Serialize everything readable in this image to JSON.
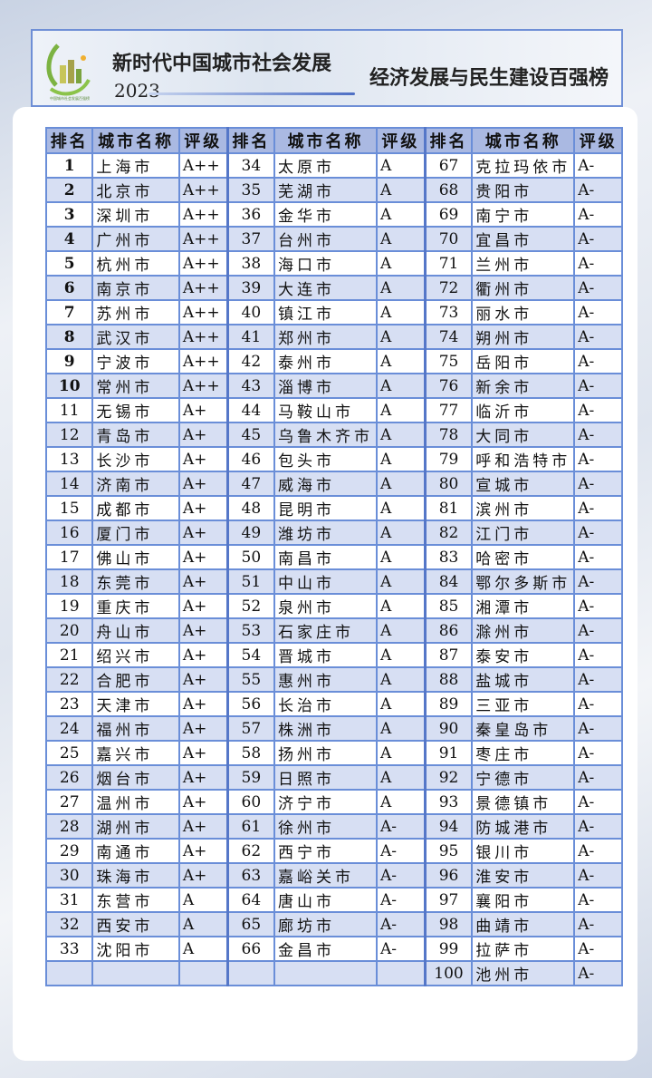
{
  "header": {
    "title": "新时代中国城市社会发展",
    "year": "2023",
    "subtitle": "经济发展与民生建设百强榜",
    "logo_text": "中国城市社会发展百强榜"
  },
  "table": {
    "headers": [
      "排名",
      "城市名称",
      "评级"
    ],
    "rows": [
      [
        [
          "1",
          "上海市",
          "A++"
        ],
        [
          "34",
          "太原市",
          "A"
        ],
        [
          "67",
          "克拉玛依市",
          "A-"
        ]
      ],
      [
        [
          "2",
          "北京市",
          "A++"
        ],
        [
          "35",
          "芜湖市",
          "A"
        ],
        [
          "68",
          "贵阳市",
          "A-"
        ]
      ],
      [
        [
          "3",
          "深圳市",
          "A++"
        ],
        [
          "36",
          "金华市",
          "A"
        ],
        [
          "69",
          "南宁市",
          "A-"
        ]
      ],
      [
        [
          "4",
          "广州市",
          "A++"
        ],
        [
          "37",
          "台州市",
          "A"
        ],
        [
          "70",
          "宜昌市",
          "A-"
        ]
      ],
      [
        [
          "5",
          "杭州市",
          "A++"
        ],
        [
          "38",
          "海口市",
          "A"
        ],
        [
          "71",
          "兰州市",
          "A-"
        ]
      ],
      [
        [
          "6",
          "南京市",
          "A++"
        ],
        [
          "39",
          "大连市",
          "A"
        ],
        [
          "72",
          "衢州市",
          "A-"
        ]
      ],
      [
        [
          "7",
          "苏州市",
          "A++"
        ],
        [
          "40",
          "镇江市",
          "A"
        ],
        [
          "73",
          "丽水市",
          "A-"
        ]
      ],
      [
        [
          "8",
          "武汉市",
          "A++"
        ],
        [
          "41",
          "郑州市",
          "A"
        ],
        [
          "74",
          "朔州市",
          "A-"
        ]
      ],
      [
        [
          "9",
          "宁波市",
          "A++"
        ],
        [
          "42",
          "泰州市",
          "A"
        ],
        [
          "75",
          "岳阳市",
          "A-"
        ]
      ],
      [
        [
          "10",
          "常州市",
          "A++"
        ],
        [
          "43",
          "淄博市",
          "A"
        ],
        [
          "76",
          "新余市",
          "A-"
        ]
      ],
      [
        [
          "11",
          "无锡市",
          "A+"
        ],
        [
          "44",
          "马鞍山市",
          "A"
        ],
        [
          "77",
          "临沂市",
          "A-"
        ]
      ],
      [
        [
          "12",
          "青岛市",
          "A+"
        ],
        [
          "45",
          "乌鲁木齐市",
          "A"
        ],
        [
          "78",
          "大同市",
          "A-"
        ]
      ],
      [
        [
          "13",
          "长沙市",
          "A+"
        ],
        [
          "46",
          "包头市",
          "A"
        ],
        [
          "79",
          "呼和浩特市",
          "A-"
        ]
      ],
      [
        [
          "14",
          "济南市",
          "A+"
        ],
        [
          "47",
          "威海市",
          "A"
        ],
        [
          "80",
          "宣城市",
          "A-"
        ]
      ],
      [
        [
          "15",
          "成都市",
          "A+"
        ],
        [
          "48",
          "昆明市",
          "A"
        ],
        [
          "81",
          "滨州市",
          "A-"
        ]
      ],
      [
        [
          "16",
          "厦门市",
          "A+"
        ],
        [
          "49",
          "潍坊市",
          "A"
        ],
        [
          "82",
          "江门市",
          "A-"
        ]
      ],
      [
        [
          "17",
          "佛山市",
          "A+"
        ],
        [
          "50",
          "南昌市",
          "A"
        ],
        [
          "83",
          "哈密市",
          "A-"
        ]
      ],
      [
        [
          "18",
          "东莞市",
          "A+"
        ],
        [
          "51",
          "中山市",
          "A"
        ],
        [
          "84",
          "鄂尔多斯市",
          "A-"
        ]
      ],
      [
        [
          "19",
          "重庆市",
          "A+"
        ],
        [
          "52",
          "泉州市",
          "A"
        ],
        [
          "85",
          "湘潭市",
          "A-"
        ]
      ],
      [
        [
          "20",
          "舟山市",
          "A+"
        ],
        [
          "53",
          "石家庄市",
          "A"
        ],
        [
          "86",
          "滁州市",
          "A-"
        ]
      ],
      [
        [
          "21",
          "绍兴市",
          "A+"
        ],
        [
          "54",
          "晋城市",
          "A"
        ],
        [
          "87",
          "泰安市",
          "A-"
        ]
      ],
      [
        [
          "22",
          "合肥市",
          "A+"
        ],
        [
          "55",
          "惠州市",
          "A"
        ],
        [
          "88",
          "盐城市",
          "A-"
        ]
      ],
      [
        [
          "23",
          "天津市",
          "A+"
        ],
        [
          "56",
          "长治市",
          "A"
        ],
        [
          "89",
          "三亚市",
          "A-"
        ]
      ],
      [
        [
          "24",
          "福州市",
          "A+"
        ],
        [
          "57",
          "株洲市",
          "A"
        ],
        [
          "90",
          "秦皇岛市",
          "A-"
        ]
      ],
      [
        [
          "25",
          "嘉兴市",
          "A+"
        ],
        [
          "58",
          "扬州市",
          "A"
        ],
        [
          "91",
          "枣庄市",
          "A-"
        ]
      ],
      [
        [
          "26",
          "烟台市",
          "A+"
        ],
        [
          "59",
          "日照市",
          "A"
        ],
        [
          "92",
          "宁德市",
          "A-"
        ]
      ],
      [
        [
          "27",
          "温州市",
          "A+"
        ],
        [
          "60",
          "济宁市",
          "A"
        ],
        [
          "93",
          "景德镇市",
          "A-"
        ]
      ],
      [
        [
          "28",
          "湖州市",
          "A+"
        ],
        [
          "61",
          "徐州市",
          "A-"
        ],
        [
          "94",
          "防城港市",
          "A-"
        ]
      ],
      [
        [
          "29",
          "南通市",
          "A+"
        ],
        [
          "62",
          "西宁市",
          "A-"
        ],
        [
          "95",
          "银川市",
          "A-"
        ]
      ],
      [
        [
          "30",
          "珠海市",
          "A+"
        ],
        [
          "63",
          "嘉峪关市",
          "A-"
        ],
        [
          "96",
          "淮安市",
          "A-"
        ]
      ],
      [
        [
          "31",
          "东营市",
          "A"
        ],
        [
          "64",
          "唐山市",
          "A-"
        ],
        [
          "97",
          "襄阳市",
          "A-"
        ]
      ],
      [
        [
          "32",
          "西安市",
          "A"
        ],
        [
          "65",
          "廊坊市",
          "A-"
        ],
        [
          "98",
          "曲靖市",
          "A-"
        ]
      ],
      [
        [
          "33",
          "沈阳市",
          "A"
        ],
        [
          "66",
          "金昌市",
          "A-"
        ],
        [
          "99",
          "拉萨市",
          "A-"
        ]
      ],
      [
        [
          "",
          "",
          ""
        ],
        [
          "",
          "",
          ""
        ],
        [
          "100",
          "池州市",
          "A-"
        ]
      ]
    ]
  },
  "colors": {
    "border": "#6a8ed8",
    "header_bg": "#aab9e2",
    "alt_row": "#d7dff3"
  }
}
